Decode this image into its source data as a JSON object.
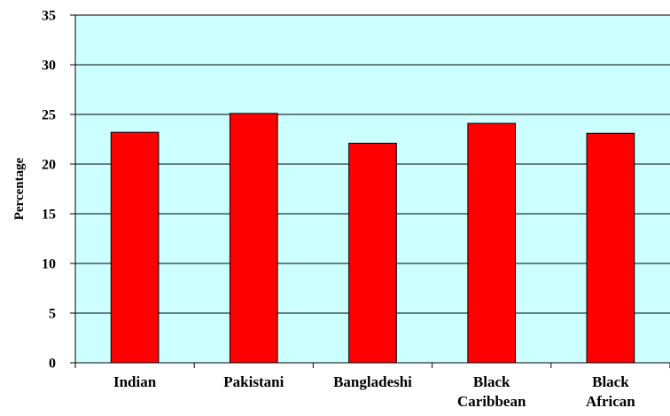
{
  "chart_data": {
    "type": "bar",
    "title": "",
    "xlabel": "",
    "ylabel": "Percentage",
    "categories": [
      [
        "Indian"
      ],
      [
        "Pakistani"
      ],
      [
        "Bangladeshi"
      ],
      [
        "Black",
        "Caribbean"
      ],
      [
        "Black",
        "African"
      ]
    ],
    "values": [
      23.2,
      25.1,
      22.1,
      24.1,
      23.1
    ],
    "ylim": [
      0,
      35
    ],
    "yticks": [
      0,
      5,
      10,
      15,
      20,
      25,
      30,
      35
    ],
    "grid": true,
    "legend": "none",
    "colors": {
      "bar_fill": "#ff0000",
      "bar_stroke": "#000000",
      "plot_background": "#ccffff",
      "gridline": "#000000"
    }
  }
}
